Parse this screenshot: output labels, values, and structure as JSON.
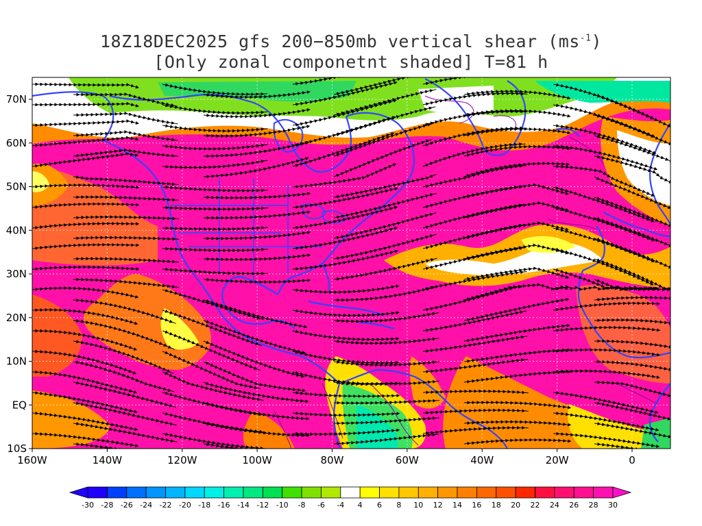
{
  "title": {
    "line1_prefix": "18Z18DEC2025 gfs 200−850mb vertical shear (ms",
    "line1_sup": "-1",
    "line1_suffix": ")",
    "line2": "[Only zonal componetnt shaded] T=81 h"
  },
  "map": {
    "lat_labels": [
      "70N",
      "60N",
      "50N",
      "40N",
      "30N",
      "20N",
      "10N",
      "EQ",
      "10S"
    ],
    "lon_labels": [
      "160W",
      "140W",
      "120W",
      "100W",
      "80W",
      "60W",
      "40W",
      "20W",
      "0"
    ],
    "region": "North Atlantic / North America / Eastern Pacific",
    "coastline_color": "#3344ff",
    "contour_color": "#9900aa",
    "streamline_color": "#000000"
  },
  "colorbar": {
    "ticks": [
      "-30",
      "-28",
      "-26",
      "-24",
      "-22",
      "-20",
      "-18",
      "-16",
      "-14",
      "-12",
      "-10",
      "-8",
      "-6",
      "-4",
      "4",
      "6",
      "8",
      "10",
      "12",
      "14",
      "16",
      "18",
      "20",
      "22",
      "24",
      "26",
      "28",
      "30"
    ],
    "colors": [
      "#1e00ff",
      "#0040ff",
      "#0070ff",
      "#0095ff",
      "#00b5ff",
      "#00d8ff",
      "#00f0e8",
      "#00f0b0",
      "#00e880",
      "#00e050",
      "#40e000",
      "#80e000",
      "#b0e800",
      "#ffffff",
      "#ffff00",
      "#ffe000",
      "#ffc800",
      "#ffb000",
      "#ff9800",
      "#ff8000",
      "#ff6800",
      "#ff5000",
      "#ff2800",
      "#ff1040",
      "#ff1070",
      "#ff1090",
      "#ff10b0"
    ],
    "left_arrow_color": "#1e00ff",
    "right_arrow_color": "#ff10c8"
  }
}
